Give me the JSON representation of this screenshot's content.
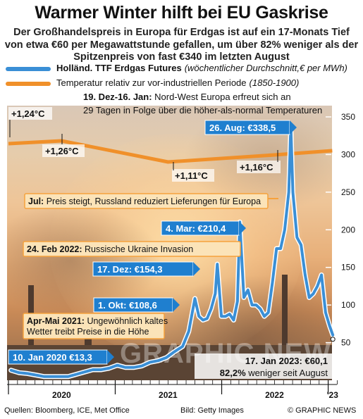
{
  "header": {
    "title": "Warmer Winter hilft bei EU Gaskrise",
    "subtitle": "Der Großhandelspreis in Europa für Erdgas ist auf ein 17-Monats Tief von etwa €60 per Megawattstunde gefallen, um über 82% weniger als der Spitzenpreis von fast €340 im letzten August"
  },
  "legend": {
    "gas_label": "Holländ. TTF Erdgas Futures",
    "gas_note": "(wöchentlicher Durchschnitt,€ per MWh)",
    "temp_label": "Temperatur relativ zur vor-industriellen Periode",
    "temp_note": "(1850-1900)"
  },
  "colors": {
    "gas_line": "#3a8fd6",
    "temp_line": "#f0902a",
    "callout_blue": "#1f7fcf",
    "callout_orange": "#f6a23c",
    "callout_cream": "#fbe3b8"
  },
  "chart_data": {
    "type": "line",
    "y_right_axis": true,
    "ylim": [
      0,
      350
    ],
    "yticks": [
      50,
      100,
      150,
      200,
      250,
      300,
      350
    ],
    "x_tick_labels": [
      "2020",
      "2021",
      "2022",
      "'23"
    ],
    "x_range": [
      "2020-01-01",
      "2023-01-31"
    ],
    "series": [
      {
        "name": "Holländ. TTF Erdgas Futures",
        "unit": "€ per MWh",
        "points": [
          [
            "2020-01-10",
            13.3
          ],
          [
            "2020-02-07",
            10
          ],
          [
            "2020-03-06",
            9
          ],
          [
            "2020-04-03",
            7
          ],
          [
            "2020-05-01",
            5
          ],
          [
            "2020-05-29",
            5
          ],
          [
            "2020-06-26",
            5
          ],
          [
            "2020-07-24",
            5
          ],
          [
            "2020-08-21",
            8
          ],
          [
            "2020-09-18",
            11
          ],
          [
            "2020-10-16",
            14
          ],
          [
            "2020-11-13",
            14
          ],
          [
            "2020-12-11",
            16
          ],
          [
            "2021-01-08",
            20
          ],
          [
            "2021-02-05",
            17
          ],
          [
            "2021-03-05",
            17
          ],
          [
            "2021-04-02",
            19
          ],
          [
            "2021-04-30",
            24
          ],
          [
            "2021-05-28",
            26
          ],
          [
            "2021-06-25",
            30
          ],
          [
            "2021-07-23",
            38
          ],
          [
            "2021-08-20",
            45
          ],
          [
            "2021-09-10",
            65
          ],
          [
            "2021-10-01",
            108.6
          ],
          [
            "2021-10-15",
            85
          ],
          [
            "2021-10-29",
            80
          ],
          [
            "2021-11-12",
            82
          ],
          [
            "2021-11-26",
            95
          ],
          [
            "2021-12-10",
            115
          ],
          [
            "2021-12-17",
            154.3
          ],
          [
            "2021-12-31",
            85
          ],
          [
            "2022-01-14",
            85
          ],
          [
            "2022-01-28",
            88
          ],
          [
            "2022-02-11",
            80
          ],
          [
            "2022-02-24",
            105
          ],
          [
            "2022-03-04",
            210.4
          ],
          [
            "2022-03-18",
            110
          ],
          [
            "2022-04-01",
            120
          ],
          [
            "2022-04-15",
            100
          ],
          [
            "2022-04-29",
            100
          ],
          [
            "2022-05-13",
            95
          ],
          [
            "2022-05-27",
            85
          ],
          [
            "2022-06-10",
            90
          ],
          [
            "2022-06-24",
            130
          ],
          [
            "2022-07-08",
            175
          ],
          [
            "2022-07-22",
            175
          ],
          [
            "2022-08-05",
            200
          ],
          [
            "2022-08-19",
            250
          ],
          [
            "2022-08-26",
            338.5
          ],
          [
            "2022-09-02",
            250
          ],
          [
            "2022-09-16",
            190
          ],
          [
            "2022-09-30",
            180
          ],
          [
            "2022-10-14",
            140
          ],
          [
            "2022-10-28",
            110
          ],
          [
            "2022-11-11",
            115
          ],
          [
            "2022-11-25",
            125
          ],
          [
            "2022-12-09",
            140
          ],
          [
            "2022-12-23",
            90
          ],
          [
            "2023-01-06",
            72
          ],
          [
            "2023-01-17",
            60.1
          ]
        ]
      },
      {
        "name": "Temperatur relativ zur vor-industriellen Periode",
        "unit": "°C",
        "points": [
          [
            "2019-12-15",
            1.24
          ],
          [
            "2020-07-01",
            1.26
          ],
          [
            "2021-07-01",
            1.11
          ],
          [
            "2022-07-01",
            1.16
          ],
          [
            "2023-01-15",
            1.19
          ]
        ]
      }
    ],
    "annotations": [
      {
        "text": "10. Jan 2020 €13,3",
        "style": "blue"
      },
      {
        "text": "1. Okt: €108,6",
        "style": "blue"
      },
      {
        "text": "17. Dez: €154,3",
        "style": "blue"
      },
      {
        "text": "4. Mar: €210,4",
        "style": "blue"
      },
      {
        "text": "26. Aug: €338,5",
        "style": "blue"
      },
      {
        "text_bold": "17. Jan 2023: €60,1",
        "text_line2_bold": "82,2%",
        "text_line2": "weniger seit August"
      },
      {
        "bold": "24. Feb 2022:",
        "text": "Russische Ukraine Invasion",
        "style": "orange"
      },
      {
        "bold": "Jul:",
        "text": "Preis steigt, Russland reduziert Lieferungen für Europa",
        "style": "orange"
      },
      {
        "bold": "Apr-Mai 2021:",
        "text": "Ungewöhnlich kaltes Wetter treibt Preise in die Höhe",
        "style": "orange"
      },
      {
        "bold": "19. Dez-16. Jan:",
        "text": "Nord-West Europa erfreut sich an 29 Tagen in Folge über die höher-als-normal Temperaturen"
      },
      {
        "text": "+1,24°C"
      },
      {
        "text": "+1,26°C"
      },
      {
        "text": "+1,11°C"
      },
      {
        "text": "+1,16°C"
      }
    ]
  },
  "footer": {
    "sources": "Quellen: Bloomberg, ICE, Met Office",
    "image_credit": "Bild: Getty Images",
    "copyright": "© GRAPHIC NEWS"
  },
  "watermark": "GRAPHIC NEWS"
}
